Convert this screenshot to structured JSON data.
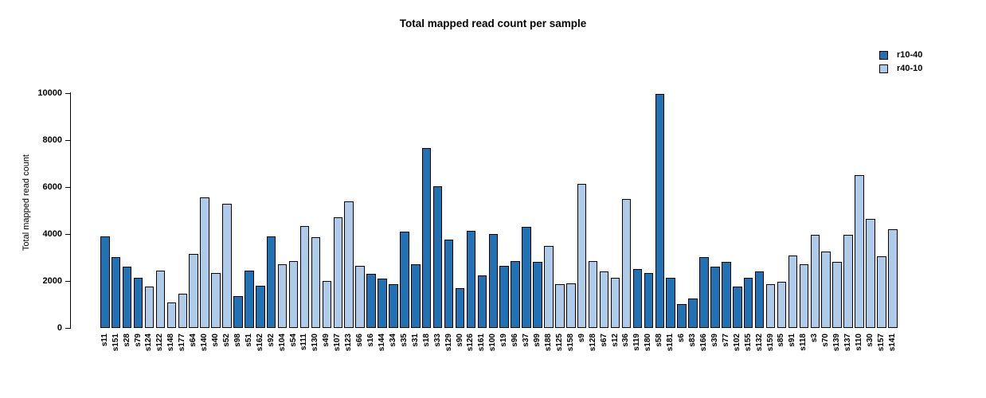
{
  "page": {
    "background": "#ffffff"
  },
  "chart_data": {
    "type": "bar",
    "title": "Total mapped read count per sample",
    "xlabel": "",
    "ylabel": "Total mapped read count",
    "ylim": [
      0,
      10000
    ],
    "yticks": [
      0,
      2000,
      4000,
      6000,
      8000,
      10000
    ],
    "grid": false,
    "legend_position": "top-right",
    "legend": [
      {
        "name": "r10-40",
        "color": "#2171B5"
      },
      {
        "name": "r40-10",
        "color": "#AECBE9"
      }
    ],
    "bars": [
      {
        "label": "s11",
        "value": 3900,
        "group": "r10-40"
      },
      {
        "label": "s151",
        "value": 3000,
        "group": "r10-40"
      },
      {
        "label": "s28",
        "value": 2600,
        "group": "r10-40"
      },
      {
        "label": "s79",
        "value": 2150,
        "group": "r10-40"
      },
      {
        "label": "s124",
        "value": 1750,
        "group": "r40-10"
      },
      {
        "label": "s122",
        "value": 2450,
        "group": "r40-10"
      },
      {
        "label": "s148",
        "value": 1100,
        "group": "r40-10"
      },
      {
        "label": "s177",
        "value": 1450,
        "group": "r40-10"
      },
      {
        "label": "s64",
        "value": 3150,
        "group": "r40-10"
      },
      {
        "label": "s140",
        "value": 5550,
        "group": "r40-10"
      },
      {
        "label": "s40",
        "value": 2350,
        "group": "r40-10"
      },
      {
        "label": "s52",
        "value": 5300,
        "group": "r40-10"
      },
      {
        "label": "s98",
        "value": 1350,
        "group": "r10-40"
      },
      {
        "label": "s51",
        "value": 2450,
        "group": "r10-40"
      },
      {
        "label": "s162",
        "value": 1800,
        "group": "r10-40"
      },
      {
        "label": "s92",
        "value": 3900,
        "group": "r10-40"
      },
      {
        "label": "s104",
        "value": 2700,
        "group": "r40-10"
      },
      {
        "label": "s54",
        "value": 2850,
        "group": "r40-10"
      },
      {
        "label": "s111",
        "value": 4350,
        "group": "r40-10"
      },
      {
        "label": "s130",
        "value": 3850,
        "group": "r40-10"
      },
      {
        "label": "s49",
        "value": 2000,
        "group": "r40-10"
      },
      {
        "label": "s107",
        "value": 4700,
        "group": "r40-10"
      },
      {
        "label": "s123",
        "value": 5400,
        "group": "r40-10"
      },
      {
        "label": "s66",
        "value": 2650,
        "group": "r40-10"
      },
      {
        "label": "s16",
        "value": 2300,
        "group": "r10-40"
      },
      {
        "label": "s144",
        "value": 2100,
        "group": "r10-40"
      },
      {
        "label": "s34",
        "value": 1850,
        "group": "r10-40"
      },
      {
        "label": "s35",
        "value": 4100,
        "group": "r10-40"
      },
      {
        "label": "s31",
        "value": 2700,
        "group": "r10-40"
      },
      {
        "label": "s18",
        "value": 7650,
        "group": "r10-40"
      },
      {
        "label": "s33",
        "value": 6050,
        "group": "r10-40"
      },
      {
        "label": "s129",
        "value": 3750,
        "group": "r10-40"
      },
      {
        "label": "s90",
        "value": 1700,
        "group": "r10-40"
      },
      {
        "label": "s126",
        "value": 4150,
        "group": "r10-40"
      },
      {
        "label": "s161",
        "value": 2250,
        "group": "r10-40"
      },
      {
        "label": "s100",
        "value": 4000,
        "group": "r10-40"
      },
      {
        "label": "s19",
        "value": 2650,
        "group": "r10-40"
      },
      {
        "label": "s96",
        "value": 2850,
        "group": "r10-40"
      },
      {
        "label": "s37",
        "value": 4300,
        "group": "r10-40"
      },
      {
        "label": "s99",
        "value": 2800,
        "group": "r10-40"
      },
      {
        "label": "s188",
        "value": 3500,
        "group": "r40-10"
      },
      {
        "label": "s125",
        "value": 1850,
        "group": "r40-10"
      },
      {
        "label": "s158",
        "value": 1900,
        "group": "r40-10"
      },
      {
        "label": "s9",
        "value": 6150,
        "group": "r40-10"
      },
      {
        "label": "s128",
        "value": 2850,
        "group": "r40-10"
      },
      {
        "label": "s67",
        "value": 2400,
        "group": "r40-10"
      },
      {
        "label": "s12",
        "value": 2150,
        "group": "r40-10"
      },
      {
        "label": "s36",
        "value": 5500,
        "group": "r40-10"
      },
      {
        "label": "s119",
        "value": 2500,
        "group": "r10-40"
      },
      {
        "label": "s180",
        "value": 2350,
        "group": "r10-40"
      },
      {
        "label": "s58",
        "value": 9950,
        "group": "r10-40"
      },
      {
        "label": "s181",
        "value": 2150,
        "group": "r10-40"
      },
      {
        "label": "s6",
        "value": 1000,
        "group": "r10-40"
      },
      {
        "label": "s83",
        "value": 1250,
        "group": "r10-40"
      },
      {
        "label": "s166",
        "value": 3000,
        "group": "r10-40"
      },
      {
        "label": "s39",
        "value": 2600,
        "group": "r10-40"
      },
      {
        "label": "s77",
        "value": 2800,
        "group": "r10-40"
      },
      {
        "label": "s102",
        "value": 1750,
        "group": "r10-40"
      },
      {
        "label": "s155",
        "value": 2150,
        "group": "r10-40"
      },
      {
        "label": "s132",
        "value": 2400,
        "group": "r10-40"
      },
      {
        "label": "s159",
        "value": 1850,
        "group": "r40-10"
      },
      {
        "label": "s85",
        "value": 1950,
        "group": "r40-10"
      },
      {
        "label": "s91",
        "value": 3100,
        "group": "r40-10"
      },
      {
        "label": "s118",
        "value": 2700,
        "group": "r40-10"
      },
      {
        "label": "s3",
        "value": 3950,
        "group": "r40-10"
      },
      {
        "label": "s70",
        "value": 3250,
        "group": "r40-10"
      },
      {
        "label": "s139",
        "value": 2800,
        "group": "r40-10"
      },
      {
        "label": "s137",
        "value": 3950,
        "group": "r40-10"
      },
      {
        "label": "s110",
        "value": 6500,
        "group": "r40-10"
      },
      {
        "label": "s30",
        "value": 4650,
        "group": "r40-10"
      },
      {
        "label": "s157",
        "value": 3050,
        "group": "r40-10"
      },
      {
        "label": "s141",
        "value": 4200,
        "group": "r40-10"
      }
    ]
  }
}
